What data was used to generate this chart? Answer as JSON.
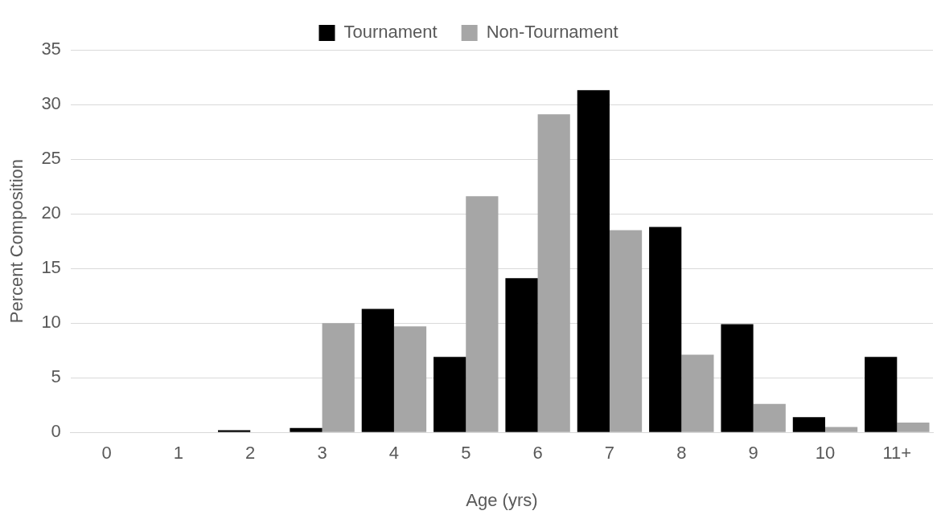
{
  "chart_data": {
    "type": "bar",
    "xlabel": "Age (yrs)",
    "ylabel": "Percent Composition",
    "categories": [
      "0",
      "1",
      "2",
      "3",
      "4",
      "5",
      "6",
      "7",
      "8",
      "9",
      "10",
      "11+"
    ],
    "series": [
      {
        "name": "Tournament",
        "color": "#000000",
        "values": [
          0,
          0,
          0.2,
          0.4,
          11.3,
          6.9,
          14.1,
          31.3,
          18.8,
          9.9,
          1.4,
          6.9
        ]
      },
      {
        "name": "Non-Tournament",
        "color": "#a6a6a6",
        "values": [
          0,
          0,
          0,
          10.0,
          9.7,
          21.6,
          29.1,
          18.5,
          7.1,
          2.6,
          0.5,
          0.9
        ]
      }
    ],
    "ylim": [
      0,
      35
    ],
    "yticks": [
      0,
      5,
      10,
      15,
      20,
      25,
      30,
      35
    ],
    "grid": "y",
    "legend": "top"
  }
}
